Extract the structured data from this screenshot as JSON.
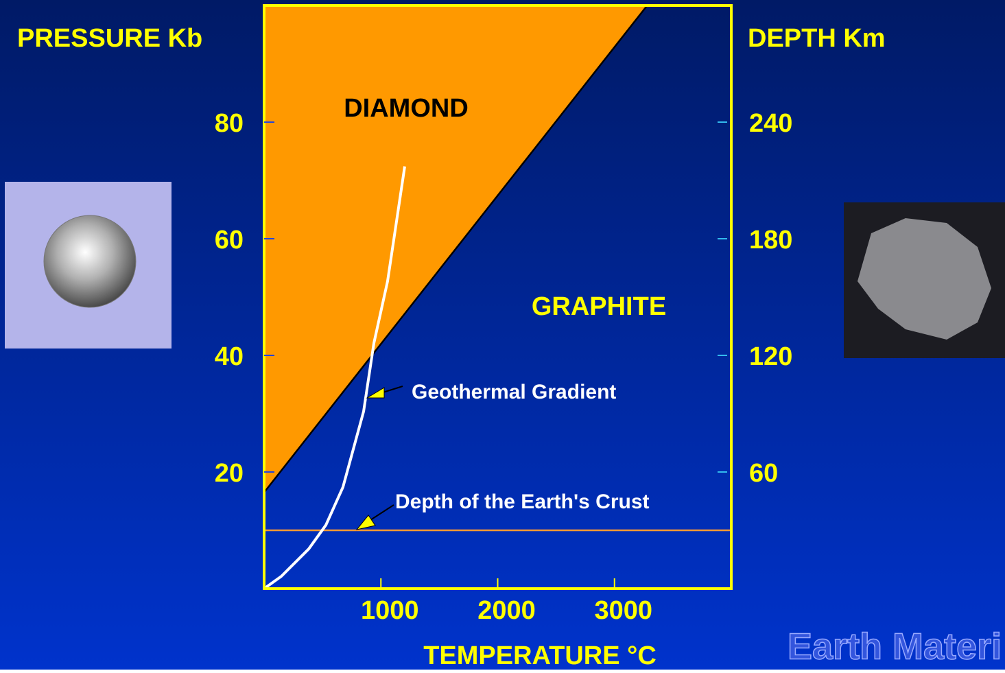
{
  "chart_data": {
    "type": "line",
    "y_title": "PRESSURE  Kb",
    "y2_title": "DEPTH  Km",
    "x_title": "TEMPERATURE °C",
    "xlim": [
      0,
      4000
    ],
    "xticks": [
      1000,
      2000,
      3000
    ],
    "ylim": [
      0,
      100
    ],
    "yticks": [
      20,
      40,
      60,
      80
    ],
    "y2lim": [
      0,
      300
    ],
    "y2ticks": [
      60,
      120,
      180,
      240
    ],
    "boundary": {
      "x": [
        0,
        3280
      ],
      "y": [
        16.5,
        100
      ],
      "fill": "#ff9900",
      "color": "#000000"
    },
    "gradient": {
      "x": [
        0,
        147,
        382,
        529,
        675,
        852,
        940,
        1057,
        1204
      ],
      "y": [
        0,
        2.1,
        6.8,
        10.9,
        17.4,
        30.4,
        42.1,
        52.7,
        72.4
      ],
      "color": "#ffffff"
    },
    "crust": {
      "x": [
        0,
        4000
      ],
      "y": [
        10,
        10
      ],
      "color": "#ff9933"
    },
    "regions": [
      "DIAMOND",
      "GRAPHITE"
    ],
    "annotations": [
      "Geothermal Gradient",
      "Depth of the Earth's Crust"
    ],
    "watermark": "Earth Materi"
  }
}
